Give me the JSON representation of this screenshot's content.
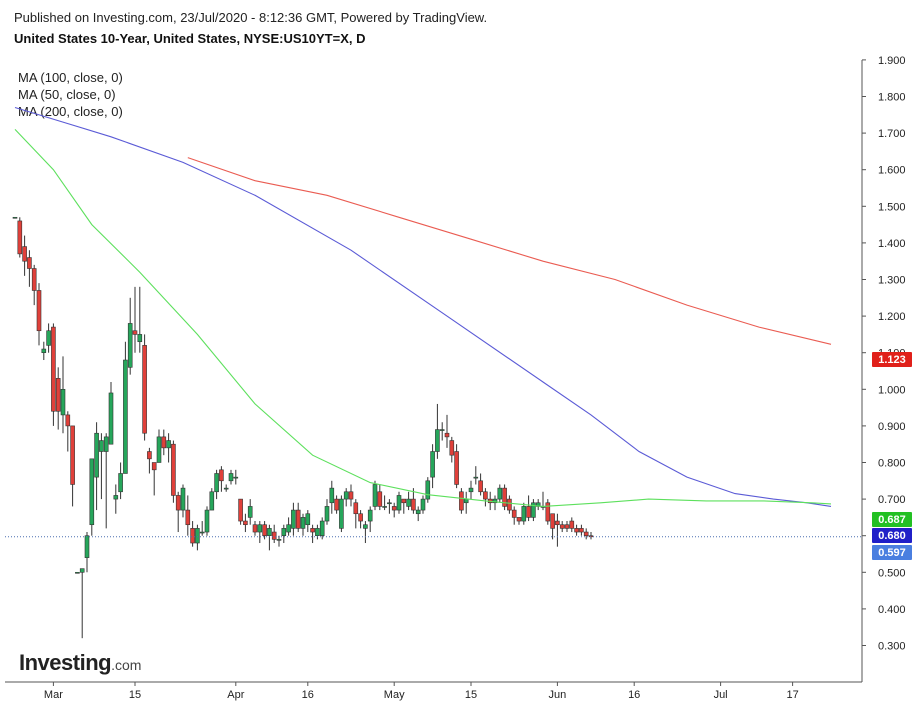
{
  "header": {
    "published": "Published on Investing.com, 23/Jul/2020 - 8:12:36 GMT, Powered by TradingView.",
    "symbol": "United States 10-Year, United States, NYSE:US10YT=X, D"
  },
  "legend": [
    "MA (100, close, 0)",
    "MA (50, close, 0)",
    "MA (200, close, 0)"
  ],
  "logo": {
    "main": "Investing",
    "suffix": ".com"
  },
  "colors": {
    "up": "#26a65b",
    "down": "#e0403a",
    "ma100": "#5b5bd6",
    "ma50": "#5de05d",
    "ma200": "#ea5c52",
    "tag_ma200": "#e0201a",
    "tag_ma50": "#22c022",
    "tag_ma100": "#2020c8",
    "tag_last": "#4a7fe0"
  },
  "chart_data": {
    "type": "candlestick",
    "y_axis": {
      "ticks": [
        "1.900",
        "1.800",
        "1.700",
        "1.600",
        "1.500",
        "1.400",
        "1.300",
        "1.200",
        "1.100",
        "1.000",
        "0.900",
        "0.800",
        "0.700",
        "0.600",
        "0.500",
        "0.400",
        "0.300"
      ]
    },
    "x_axis": {
      "ticks": [
        {
          "label": "Mar",
          "i": 8
        },
        {
          "label": "15",
          "i": 25
        },
        {
          "label": "Apr",
          "i": 46
        },
        {
          "label": "16",
          "i": 61
        },
        {
          "label": "May",
          "i": 79
        },
        {
          "label": "15",
          "i": 95
        },
        {
          "label": "Jun",
          "i": 113
        },
        {
          "label": "16",
          "i": 129
        },
        {
          "label": "Jul",
          "i": 147
        },
        {
          "label": "17",
          "i": 162
        }
      ]
    },
    "price_tags": [
      {
        "label": "1.123",
        "value": 1.123,
        "color_key": "tag_ma200"
      },
      {
        "label": "0.687",
        "value": 0.687,
        "color_key": "tag_ma50"
      },
      {
        "label": "0.680",
        "value": 0.68,
        "color_key": "tag_ma100"
      },
      {
        "label": "0.597",
        "value": 0.597,
        "color_key": "tag_last"
      }
    ],
    "last_price": 0.597,
    "candles": [
      [
        1.47,
        1.47,
        1.47,
        1.47
      ],
      [
        1.46,
        1.47,
        1.36,
        1.37
      ],
      [
        1.39,
        1.42,
        1.31,
        1.35
      ],
      [
        1.36,
        1.38,
        1.28,
        1.33
      ],
      [
        1.33,
        1.34,
        1.23,
        1.27
      ],
      [
        1.27,
        1.29,
        1.12,
        1.16
      ],
      [
        1.1,
        1.13,
        1.08,
        1.11
      ],
      [
        1.12,
        1.18,
        1.1,
        1.16
      ],
      [
        1.17,
        1.18,
        0.9,
        0.94
      ],
      [
        1.03,
        1.06,
        0.89,
        0.94
      ],
      [
        0.93,
        1.09,
        0.88,
        1.0
      ],
      [
        0.93,
        0.94,
        0.83,
        0.9
      ],
      [
        0.9,
        0.9,
        0.68,
        0.74
      ],
      [
        0.5,
        0.5,
        0.5,
        0.5
      ],
      [
        0.5,
        0.5,
        0.32,
        0.51
      ],
      [
        0.54,
        0.61,
        0.5,
        0.6
      ],
      [
        0.63,
        0.81,
        0.6,
        0.81
      ],
      [
        0.76,
        0.91,
        0.67,
        0.88
      ],
      [
        0.83,
        0.88,
        0.7,
        0.86
      ],
      [
        0.83,
        0.88,
        0.62,
        0.87
      ],
      [
        0.85,
        1.02,
        0.85,
        0.99
      ],
      [
        0.7,
        0.74,
        0.66,
        0.71
      ],
      [
        0.72,
        0.8,
        0.7,
        0.77
      ],
      [
        0.77,
        1.13,
        0.77,
        1.08
      ],
      [
        1.06,
        1.25,
        1.04,
        1.18
      ],
      [
        1.16,
        1.28,
        1.1,
        1.15
      ],
      [
        1.13,
        1.28,
        1.1,
        1.15
      ],
      [
        1.12,
        1.15,
        0.86,
        0.88
      ],
      [
        0.83,
        0.84,
        0.77,
        0.81
      ],
      [
        0.8,
        0.8,
        0.71,
        0.78
      ],
      [
        0.8,
        0.89,
        0.8,
        0.87
      ],
      [
        0.87,
        0.89,
        0.82,
        0.84
      ],
      [
        0.84,
        0.88,
        0.8,
        0.86
      ],
      [
        0.85,
        0.86,
        0.69,
        0.71
      ],
      [
        0.71,
        0.72,
        0.61,
        0.67
      ],
      [
        0.67,
        0.74,
        0.65,
        0.73
      ],
      [
        0.67,
        0.71,
        0.6,
        0.63
      ],
      [
        0.62,
        0.64,
        0.57,
        0.58
      ],
      [
        0.58,
        0.63,
        0.56,
        0.62
      ],
      [
        0.61,
        0.64,
        0.6,
        0.61
      ],
      [
        0.61,
        0.68,
        0.6,
        0.67
      ],
      [
        0.67,
        0.73,
        0.67,
        0.72
      ],
      [
        0.72,
        0.78,
        0.7,
        0.77
      ],
      [
        0.78,
        0.79,
        0.72,
        0.75
      ],
      [
        0.73,
        0.74,
        0.72,
        0.73
      ],
      [
        0.75,
        0.78,
        0.74,
        0.77
      ],
      [
        0.76,
        0.78,
        0.74,
        0.76
      ],
      [
        0.7,
        0.7,
        0.63,
        0.64
      ],
      [
        0.64,
        0.66,
        0.61,
        0.63
      ],
      [
        0.65,
        0.7,
        0.63,
        0.68
      ],
      [
        0.63,
        0.64,
        0.6,
        0.61
      ],
      [
        0.61,
        0.64,
        0.58,
        0.63
      ],
      [
        0.63,
        0.64,
        0.59,
        0.6
      ],
      [
        0.6,
        0.63,
        0.56,
        0.62
      ],
      [
        0.61,
        0.63,
        0.58,
        0.59
      ],
      [
        0.59,
        0.6,
        0.57,
        0.59
      ],
      [
        0.6,
        0.63,
        0.58,
        0.62
      ],
      [
        0.61,
        0.65,
        0.6,
        0.63
      ],
      [
        0.62,
        0.69,
        0.6,
        0.67
      ],
      [
        0.67,
        0.69,
        0.61,
        0.62
      ],
      [
        0.62,
        0.66,
        0.6,
        0.65
      ],
      [
        0.63,
        0.67,
        0.61,
        0.66
      ],
      [
        0.62,
        0.63,
        0.58,
        0.61
      ],
      [
        0.6,
        0.63,
        0.59,
        0.62
      ],
      [
        0.6,
        0.65,
        0.59,
        0.64
      ],
      [
        0.64,
        0.7,
        0.63,
        0.68
      ],
      [
        0.69,
        0.75,
        0.66,
        0.73
      ],
      [
        0.7,
        0.71,
        0.66,
        0.67
      ],
      [
        0.62,
        0.71,
        0.61,
        0.7
      ],
      [
        0.7,
        0.73,
        0.68,
        0.72
      ],
      [
        0.72,
        0.74,
        0.68,
        0.7
      ],
      [
        0.69,
        0.7,
        0.62,
        0.66
      ],
      [
        0.66,
        0.67,
        0.62,
        0.64
      ],
      [
        0.62,
        0.64,
        0.58,
        0.63
      ],
      [
        0.64,
        0.68,
        0.61,
        0.67
      ],
      [
        0.68,
        0.75,
        0.67,
        0.74
      ],
      [
        0.72,
        0.74,
        0.67,
        0.68
      ],
      [
        0.68,
        0.71,
        0.67,
        0.68
      ],
      [
        0.69,
        0.7,
        0.66,
        0.69
      ],
      [
        0.68,
        0.69,
        0.65,
        0.67
      ],
      [
        0.67,
        0.72,
        0.66,
        0.71
      ],
      [
        0.7,
        0.7,
        0.66,
        0.69
      ],
      [
        0.68,
        0.72,
        0.67,
        0.7
      ],
      [
        0.7,
        0.73,
        0.66,
        0.67
      ],
      [
        0.66,
        0.68,
        0.64,
        0.67
      ],
      [
        0.67,
        0.71,
        0.66,
        0.7
      ],
      [
        0.7,
        0.76,
        0.69,
        0.75
      ],
      [
        0.76,
        0.85,
        0.73,
        0.83
      ],
      [
        0.83,
        0.96,
        0.81,
        0.89
      ],
      [
        0.89,
        0.91,
        0.86,
        0.89
      ],
      [
        0.88,
        0.93,
        0.84,
        0.87
      ],
      [
        0.86,
        0.87,
        0.8,
        0.82
      ],
      [
        0.83,
        0.85,
        0.73,
        0.74
      ],
      [
        0.72,
        0.73,
        0.66,
        0.67
      ],
      [
        0.69,
        0.72,
        0.66,
        0.7
      ],
      [
        0.72,
        0.75,
        0.7,
        0.73
      ],
      [
        0.76,
        0.79,
        0.74,
        0.76
      ],
      [
        0.75,
        0.77,
        0.71,
        0.72
      ],
      [
        0.72,
        0.73,
        0.68,
        0.7
      ],
      [
        0.7,
        0.72,
        0.67,
        0.69
      ],
      [
        0.69,
        0.71,
        0.67,
        0.7
      ],
      [
        0.7,
        0.74,
        0.69,
        0.73
      ],
      [
        0.73,
        0.74,
        0.67,
        0.68
      ],
      [
        0.7,
        0.71,
        0.66,
        0.67
      ],
      [
        0.67,
        0.68,
        0.63,
        0.65
      ],
      [
        0.65,
        0.65,
        0.63,
        0.64
      ],
      [
        0.64,
        0.69,
        0.63,
        0.68
      ],
      [
        0.68,
        0.71,
        0.64,
        0.65
      ],
      [
        0.65,
        0.7,
        0.64,
        0.69
      ],
      [
        0.68,
        0.7,
        0.67,
        0.69
      ],
      [
        0.68,
        0.72,
        0.67,
        0.68
      ],
      [
        0.69,
        0.7,
        0.63,
        0.64
      ],
      [
        0.66,
        0.66,
        0.59,
        0.62
      ],
      [
        0.64,
        0.66,
        0.57,
        0.63
      ],
      [
        0.63,
        0.64,
        0.61,
        0.62
      ],
      [
        0.63,
        0.64,
        0.61,
        0.62
      ],
      [
        0.64,
        0.65,
        0.61,
        0.62
      ],
      [
        0.62,
        0.63,
        0.6,
        0.61
      ],
      [
        0.62,
        0.63,
        0.6,
        0.61
      ],
      [
        0.61,
        0.62,
        0.59,
        0.6
      ],
      [
        0.6,
        0.61,
        0.59,
        0.597
      ]
    ],
    "x_index_map": {
      "first_candle_i": 0
    },
    "ma100": [
      [
        0,
        1.77
      ],
      [
        10,
        1.73
      ],
      [
        20,
        1.69
      ],
      [
        35,
        1.62
      ],
      [
        50,
        1.53
      ],
      [
        70,
        1.38
      ],
      [
        90,
        1.2
      ],
      [
        110,
        1.02
      ],
      [
        120,
        0.93
      ],
      [
        130,
        0.83
      ],
      [
        140,
        0.76
      ],
      [
        150,
        0.715
      ],
      [
        158,
        0.7
      ],
      [
        165,
        0.69
      ],
      [
        170,
        0.68
      ]
    ],
    "ma50": [
      [
        0,
        1.71
      ],
      [
        8,
        1.6
      ],
      [
        16,
        1.45
      ],
      [
        26,
        1.32
      ],
      [
        38,
        1.15
      ],
      [
        50,
        0.96
      ],
      [
        62,
        0.82
      ],
      [
        74,
        0.745
      ],
      [
        86,
        0.712
      ],
      [
        98,
        0.695
      ],
      [
        110,
        0.68
      ],
      [
        122,
        0.69
      ],
      [
        132,
        0.7
      ],
      [
        144,
        0.695
      ],
      [
        156,
        0.695
      ],
      [
        166,
        0.69
      ],
      [
        170,
        0.687
      ]
    ],
    "ma200": [
      [
        36,
        1.633
      ],
      [
        50,
        1.57
      ],
      [
        65,
        1.53
      ],
      [
        80,
        1.47
      ],
      [
        95,
        1.41
      ],
      [
        110,
        1.35
      ],
      [
        125,
        1.3
      ],
      [
        140,
        1.23
      ],
      [
        155,
        1.17
      ],
      [
        170,
        1.123
      ]
    ]
  }
}
